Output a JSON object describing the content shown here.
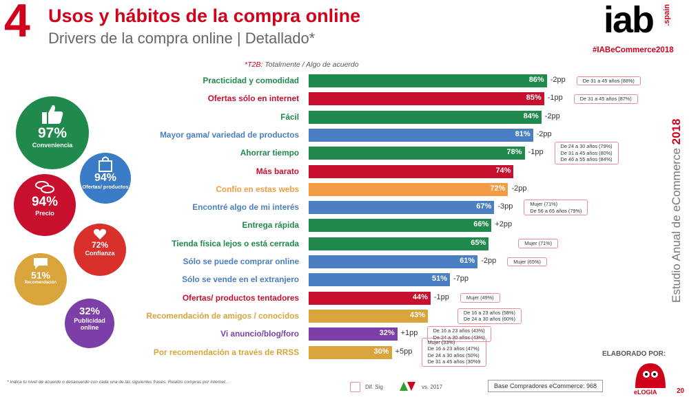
{
  "header": {
    "section_number": "4",
    "title": "Usos y hábitos de la compra online",
    "subtitle": "Drivers de la compra online | Detallado*",
    "t2b_star": "*T2B:",
    "t2b_text": "Totalmente / Algo de acuerdo",
    "logo_text": "iab",
    "logo_sub": ".spain",
    "hashtag": "#IABeCommerce2018"
  },
  "side": {
    "text": "Estudio Anual de eCommerce",
    "year": "2018"
  },
  "circles": [
    {
      "pct": "97%",
      "name": "Conveniencia",
      "icon": "thumbs-up-icon",
      "color": "#1f8a4c"
    },
    {
      "pct": "94%",
      "name": "Ofertas/ productos",
      "icon": "shopping-bag-icon",
      "color": "#3a7cc5"
    },
    {
      "pct": "94%",
      "name": "Precio",
      "icon": "coins-icon",
      "color": "#c8102e"
    },
    {
      "pct": "72%",
      "name": "Confianza",
      "icon": "heart-icon",
      "color": "#d9302c"
    },
    {
      "pct": "51%",
      "name": "Recomendación",
      "icon": "speech-bubble-icon",
      "color": "#d9a43b"
    },
    {
      "pct": "32%",
      "name": "Publicidad online",
      "icon": "",
      "color": "#7b3fa7"
    }
  ],
  "colors": {
    "green": "#1f8a4c",
    "red": "#c8102e",
    "blue": "#4a7fc3",
    "orange": "#f39c45",
    "tan": "#d9a43b",
    "purple": "#7b3fa7"
  },
  "chart_data": {
    "type": "bar",
    "orientation": "horizontal",
    "xlim": [
      0,
      100
    ],
    "categories": [
      "Practicidad y comodidad",
      "Ofertas sólo en internet",
      "Fácil",
      "Mayor gama/ variedad de productos",
      "Ahorrar tiempo",
      "Más barato",
      "Confío en estas webs",
      "Encontré algo de mi interés",
      "Entrega rápida",
      "Tienda física lejos o está cerrada",
      "Sólo se puede comprar online",
      "Sólo se vende en el extranjero",
      "Ofertas/ productos tentadores",
      "Recomendación de amigos / conocidos",
      "Vi anuncio/blog/foro",
      "Por recomendación a través de RRSS"
    ],
    "values": [
      86,
      85,
      84,
      81,
      78,
      74,
      72,
      67,
      66,
      65,
      61,
      51,
      44,
      43,
      32,
      30
    ],
    "value_labels": [
      "86%",
      "85%",
      "84%",
      "81%",
      "78%",
      "74%",
      "72%",
      "67%",
      "66%",
      "65%",
      "61%",
      "51%",
      "44%",
      "43%",
      "32%",
      "30%"
    ],
    "bar_colors": [
      "green",
      "red",
      "green",
      "blue",
      "green",
      "red",
      "orange",
      "blue",
      "green",
      "green",
      "blue",
      "blue",
      "red",
      "tan",
      "purple",
      "tan"
    ],
    "differences": [
      "-2pp",
      "-1pp",
      "-2pp",
      "-2pp",
      "-1pp",
      "",
      "-2pp",
      "-3pp",
      "+2pp",
      "",
      "-2pp",
      "-7pp",
      "-1pp",
      "",
      "+1pp",
      "+5pp"
    ],
    "notes": [
      [
        "De 31 a 45 años (88%)"
      ],
      [
        "De 31 a 45 años (87%)"
      ],
      [],
      [],
      [
        "De 24 a 30 años (79%)",
        "De 31 a 45 años (80%)",
        "De 46 a 55 años (84%)"
      ],
      [],
      [],
      [
        "Mujer (71%)",
        "De 56 a 65 años (79%)"
      ],
      [],
      [
        "Mujer (71%)"
      ],
      [
        "Mujer (65%)"
      ],
      [],
      [
        "Mujer (49%)"
      ],
      [
        "De 16 a 23 años (58%)",
        "De 24 a 30 años (60%)"
      ],
      [
        "De 16 a 23 años (43%)",
        "De 24 a 30 años (43%)"
      ],
      [
        "Mujer (33%)",
        "De 16 a 23 años (47%)",
        "De 24 a 30 años (50%)",
        "De 31 a 45 años (30%9"
      ]
    ]
  },
  "footer": {
    "footnote": "*  Indica tu nivel de acuerdo o desacuerdo con cada una de las siguientes frases. Realizo compras por internet…",
    "legend_sig": "Dif. Sig",
    "legend_vs": "vs. 2017",
    "base": "Base Compradores eCommerce: 968",
    "elaborado": "ELABORADO POR:",
    "elogia": "eLOGIA",
    "page": "20"
  }
}
